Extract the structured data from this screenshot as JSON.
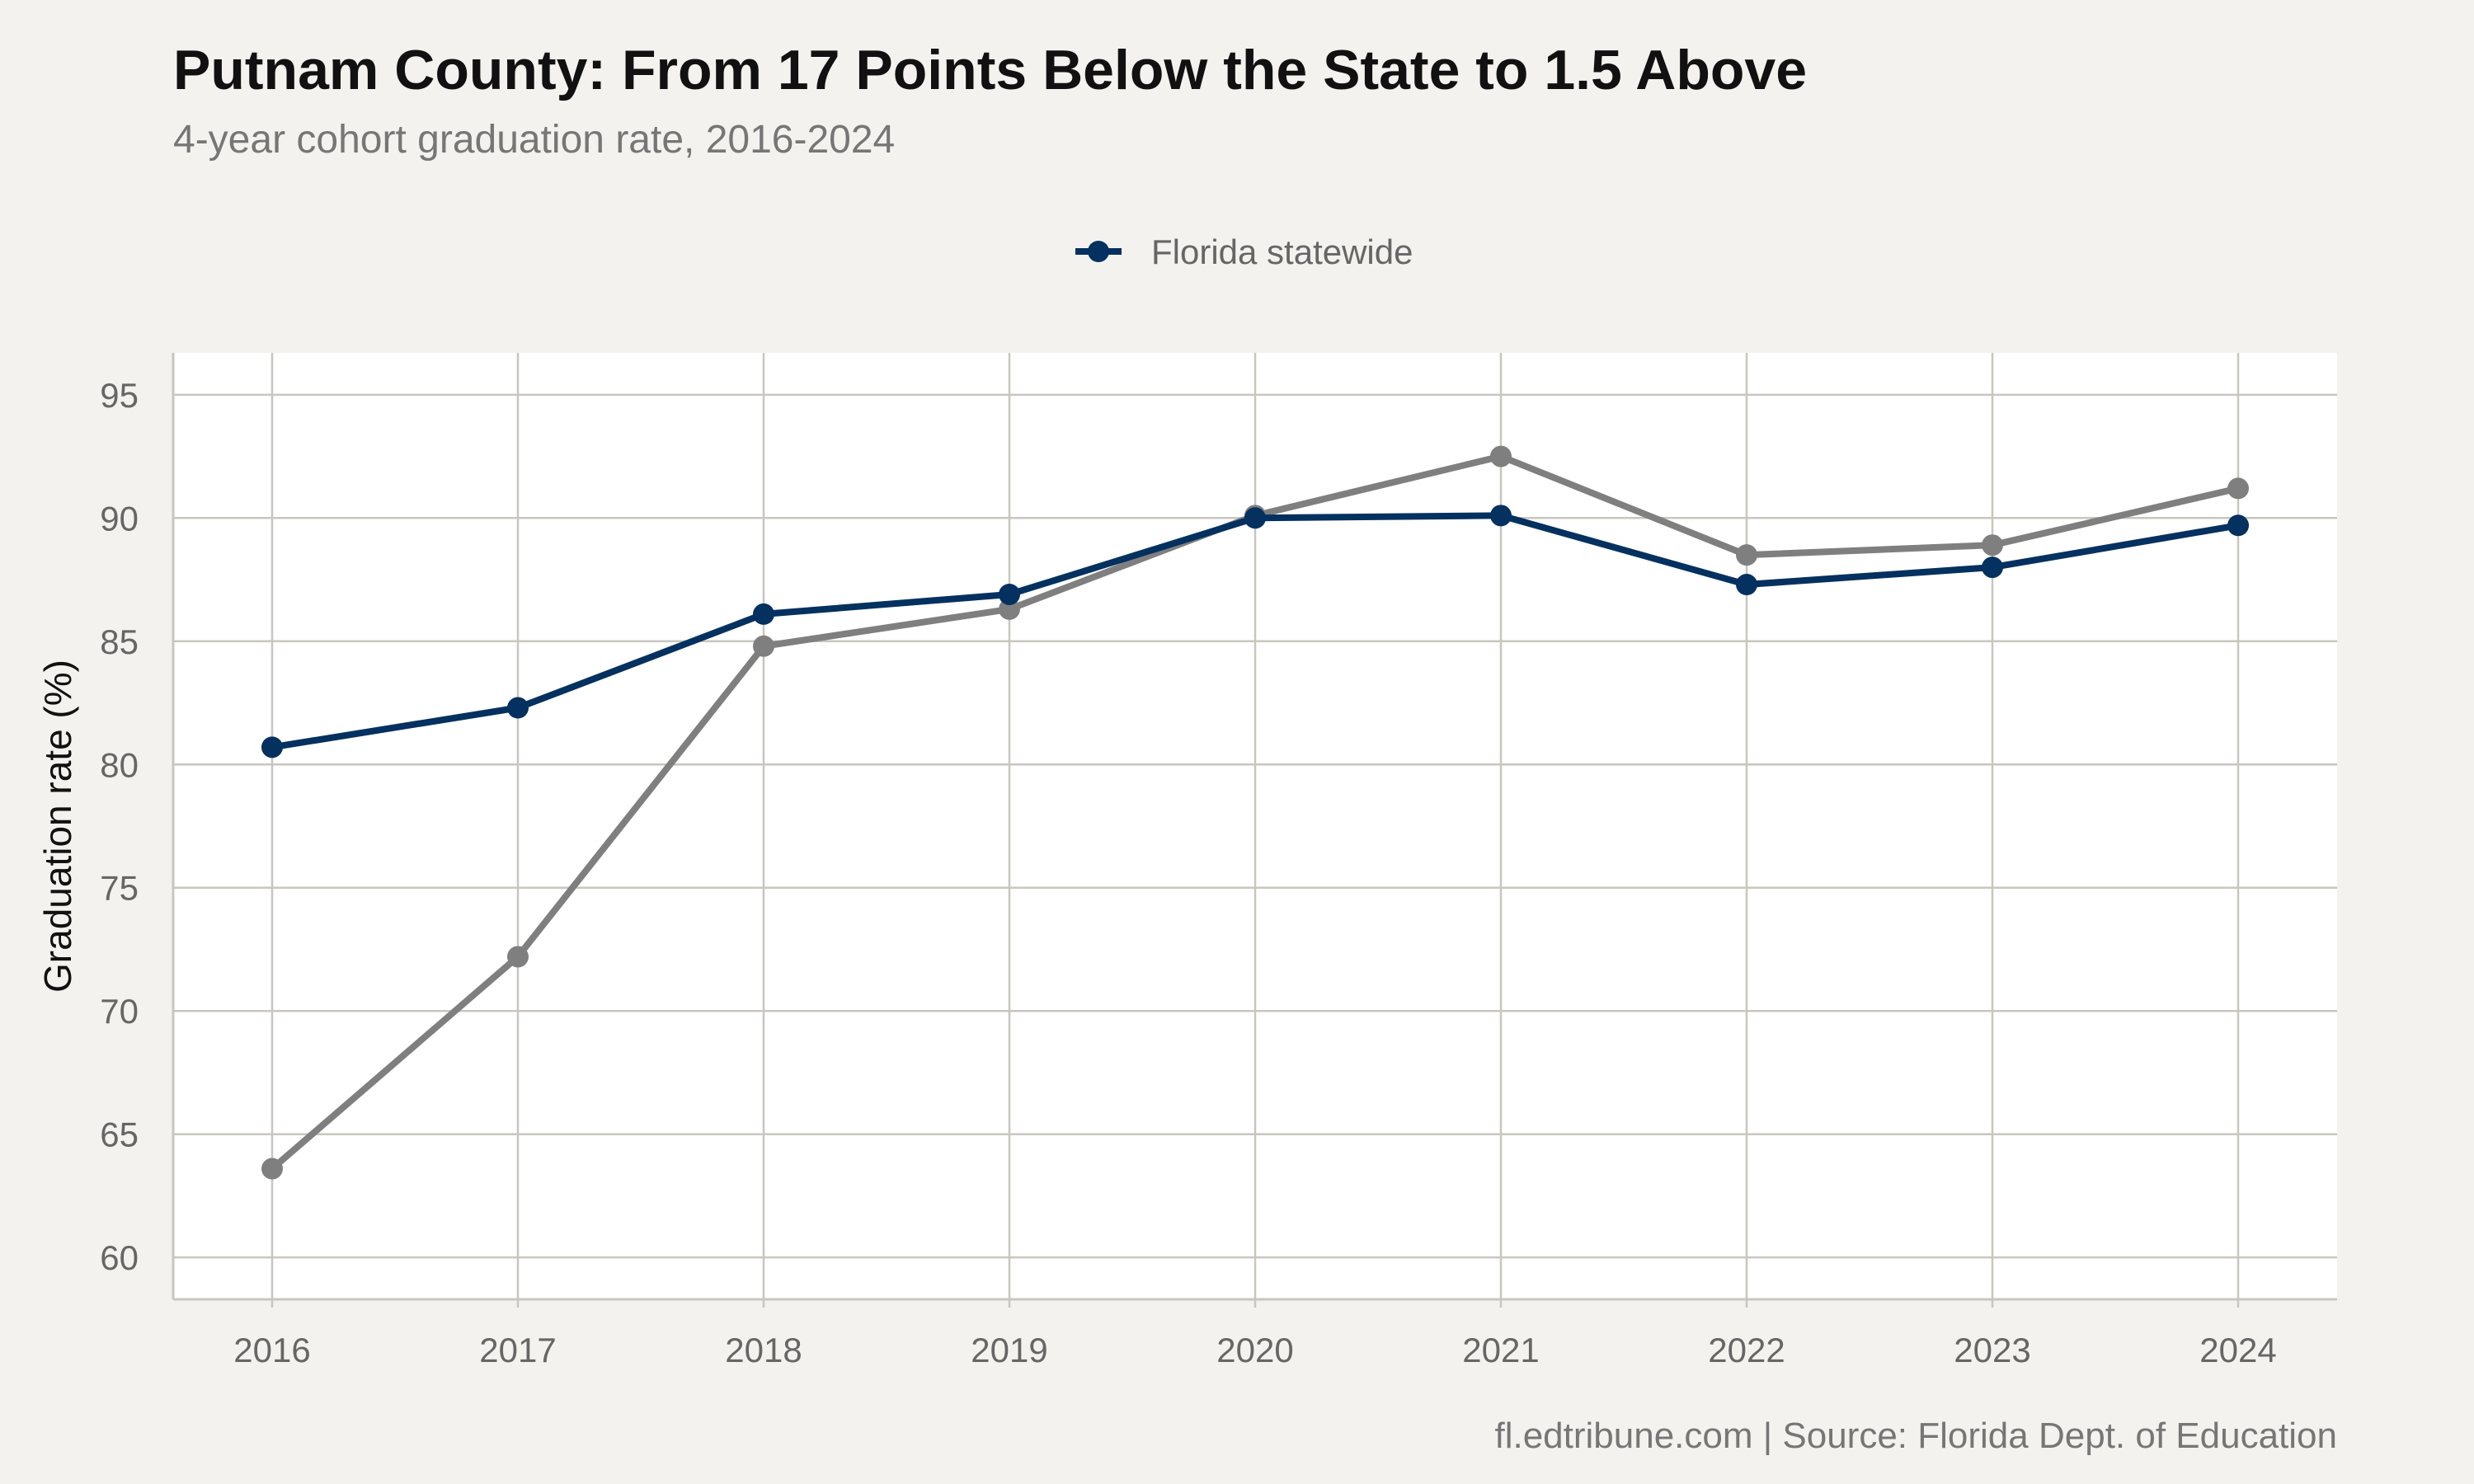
{
  "chart_data": {
    "type": "line",
    "title": "Putnam County: From 17 Points Below the State to 1.5 Above",
    "subtitle": "4-year cohort graduation rate, 2016-2024",
    "caption": "fl.edtribune.com | Source: Florida Dept. of Education",
    "xlabel": "",
    "ylabel": "Graduation rate (%)",
    "categories": [
      "2016",
      "2017",
      "2018",
      "2019",
      "2020",
      "2021",
      "2022",
      "2023",
      "2024"
    ],
    "ylim": [
      58.3,
      96.7
    ],
    "yticks": [
      60,
      65,
      70,
      75,
      80,
      85,
      90,
      95
    ],
    "grid": true,
    "legend_position": "top",
    "series": [
      {
        "name": "Florida statewide",
        "color": "#04315f",
        "show_in_legend": true,
        "values": [
          80.7,
          82.3,
          86.1,
          86.9,
          90.0,
          90.1,
          87.3,
          88.0,
          89.7
        ]
      },
      {
        "name": "",
        "color": "#7f7f7f",
        "show_in_legend": false,
        "values": [
          63.6,
          72.2,
          84.8,
          86.3,
          90.1,
          92.5,
          88.5,
          88.9,
          91.2
        ]
      }
    ]
  }
}
